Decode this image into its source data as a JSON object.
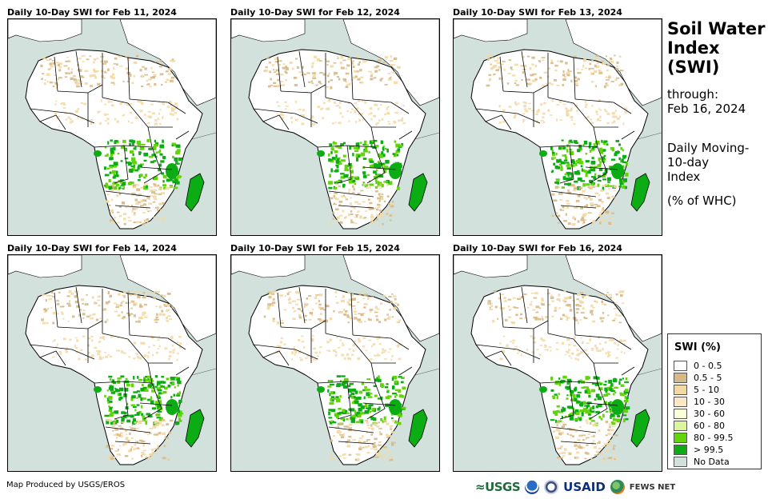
{
  "panels": [
    {
      "title": "Daily 10-Day SWI for Feb 11, 2024",
      "wet_level": 0.85
    },
    {
      "title": "Daily 10-Day SWI for Feb 12, 2024",
      "wet_level": 0.9
    },
    {
      "title": "Daily 10-Day SWI for Feb 13, 2024",
      "wet_level": 0.95
    },
    {
      "title": "Daily 10-Day SWI for Feb 14, 2024",
      "wet_level": 1.0
    },
    {
      "title": "Daily 10-Day SWI for Feb 15, 2024",
      "wet_level": 0.95
    },
    {
      "title": "Daily 10-Day SWI for Feb 16, 2024",
      "wet_level": 1.0
    }
  ],
  "sidebar": {
    "title_line1": "Soil Water",
    "title_line2": "Index",
    "title_line3": "(SWI)",
    "through_label": "through:",
    "through_date": "Feb 16, 2024",
    "desc_line1": "Daily Moving-",
    "desc_line2": "10-day",
    "desc_line3": "Index",
    "units": "(% of WHC)"
  },
  "legend": {
    "title": "SWI (%)",
    "items": [
      {
        "label": "0 - 0.5",
        "color": "#ffffff"
      },
      {
        "label": "0.5 - 5",
        "color": "#d7b988"
      },
      {
        "label": "5 - 10",
        "color": "#f3d8a3"
      },
      {
        "label": "10 - 30",
        "color": "#fde6c4"
      },
      {
        "label": "30 - 60",
        "color": "#fbffd8"
      },
      {
        "label": "60 - 80",
        "color": "#dcf59a"
      },
      {
        "label": "80 - 99.5",
        "color": "#63d40a"
      },
      {
        "label": "> 99.5",
        "color": "#0cac14"
      },
      {
        "label": "No Data",
        "color": "#d2e1dc"
      }
    ]
  },
  "footer": {
    "credit": "Map Produced by USGS/EROS",
    "logos": {
      "usgs": "≈USGS",
      "usaid": "USAID",
      "fews": "FEWS NET"
    }
  },
  "colors": {
    "sea": "#d2e1dc",
    "land": "#ffffff",
    "dry": "#d7b988",
    "tan": "#f3d8a3",
    "wet": "#63d40a",
    "saturated": "#0cac14",
    "border": "#000000"
  }
}
